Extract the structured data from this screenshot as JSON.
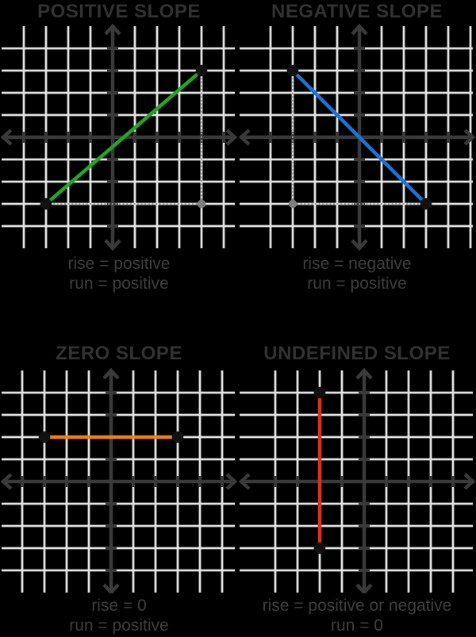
{
  "page": {
    "background": "#000000"
  },
  "style": {
    "grid_color": "#e2e2e2",
    "axis_color": "#3a3a3a",
    "title_color": "#323232",
    "caption_color": "#3e3e3e",
    "dotted_color": "#9b9b9b",
    "point_color": "#111111",
    "helper_point_color": "#7e7e7e"
  },
  "panels": [
    {
      "title": "POSITIVE SLOPE",
      "caption": [
        "rise = positive",
        "run = positive"
      ],
      "line_color": "#25a525",
      "segment": {
        "from": [
          -3,
          -3
        ],
        "to": [
          4,
          3
        ]
      },
      "helper_corner": [
        4,
        -3
      ]
    },
    {
      "title": "NEGATIVE SLOPE",
      "caption": [
        "rise = negative",
        "run = positive"
      ],
      "line_color": "#1e72d2",
      "segment": {
        "from": [
          -3,
          3
        ],
        "to": [
          3,
          -3
        ]
      },
      "helper_corner": [
        -3,
        -3
      ]
    },
    {
      "title": "ZERO SLOPE",
      "caption": [
        "rise = 0",
        "run = positive"
      ],
      "line_color": "#ee8410",
      "segment": {
        "from": [
          -3,
          2
        ],
        "to": [
          3,
          2
        ]
      },
      "helper_corner": null
    },
    {
      "title": "UNDEFINED SLOPE",
      "caption": [
        "rise = positive or negative",
        "run = 0"
      ],
      "line_color": "#d93020",
      "segment": {
        "from": [
          -2,
          4
        ],
        "to": [
          -2,
          -3
        ]
      },
      "helper_corner": null
    }
  ]
}
